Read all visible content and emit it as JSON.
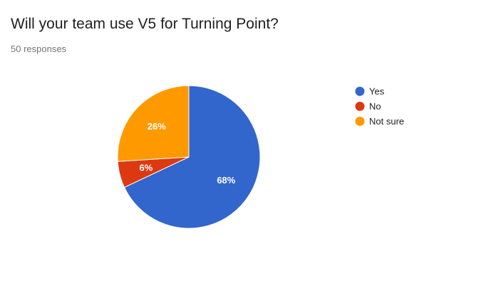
{
  "form": {
    "question": "Will your team use V5 for Turning Point?",
    "responses": "50 responses"
  },
  "chart_data": {
    "type": "pie",
    "title": "Will your team use V5 for Turning Point?",
    "start_angle_deg": 90,
    "direction": "clockwise",
    "legend_position": "right",
    "slices": [
      {
        "label": "Yes",
        "value": 68,
        "display": "68%",
        "color": "#3366cc"
      },
      {
        "label": "No",
        "value": 6,
        "display": "6%",
        "color": "#dc3912"
      },
      {
        "label": "Not sure",
        "value": 26,
        "display": "26%",
        "color": "#ff9900"
      }
    ]
  }
}
